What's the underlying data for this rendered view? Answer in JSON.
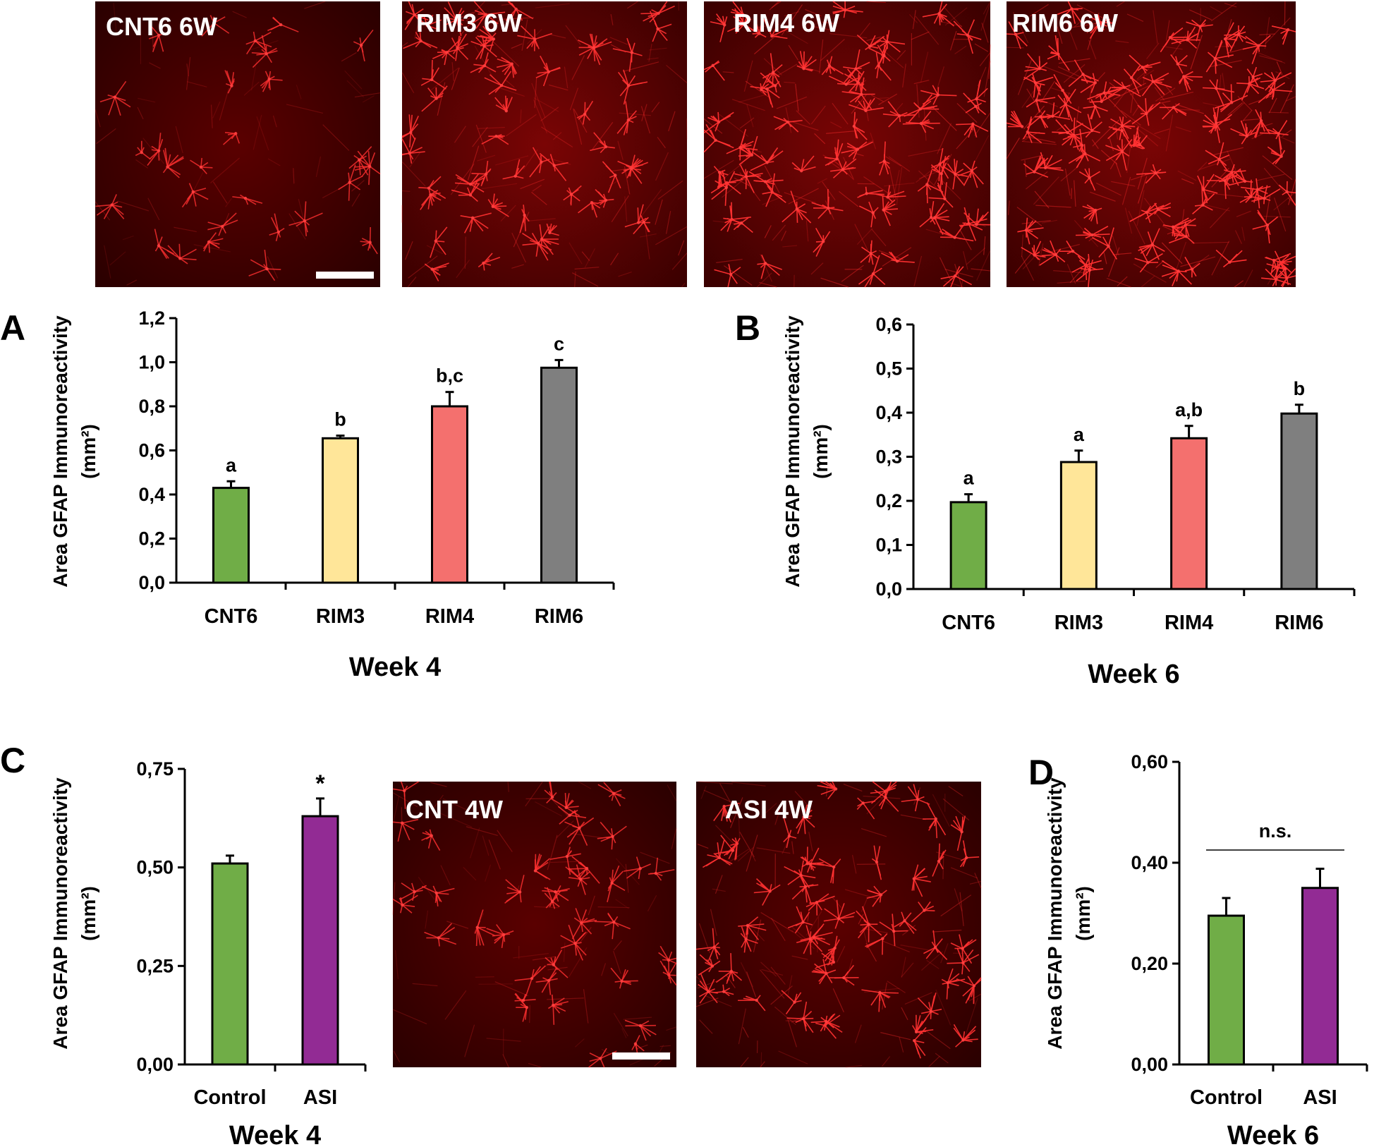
{
  "colors": {
    "CNT6": "#70ad47",
    "RIM3": "#ffe699",
    "RIM4": "#f4706e",
    "RIM6": "#7f7f7f",
    "Control": "#70ad47",
    "ASI": "#922b94"
  },
  "micrographs": {
    "top": [
      "CNT6 6W",
      "RIM3 6W",
      "RIM4 6W",
      "RIM6 6W"
    ],
    "panel_c": [
      "CNT 4W",
      "ASI 4W"
    ]
  },
  "chart_data": [
    {
      "panel": "A",
      "type": "bar",
      "categories": [
        "CNT6",
        "RIM3",
        "RIM4",
        "RIM6"
      ],
      "values": [
        0.43,
        0.655,
        0.8,
        0.975
      ],
      "errors": [
        0.03,
        0.012,
        0.065,
        0.035
      ],
      "significance": [
        "a",
        "b",
        "b,c",
        "c"
      ],
      "ylim": [
        0,
        1.2
      ],
      "yticks": [
        "0,0",
        "0,2",
        "0,4",
        "0,6",
        "0,8",
        "1,0",
        "1,2"
      ],
      "ylabel": "Area GFAP Immunoreactivity",
      "yunit": "(mm²)",
      "xlabel": "Week 4"
    },
    {
      "panel": "B",
      "type": "bar",
      "categories": [
        "CNT6",
        "RIM3",
        "RIM4",
        "RIM6"
      ],
      "values": [
        0.197,
        0.288,
        0.342,
        0.398
      ],
      "errors": [
        0.018,
        0.026,
        0.028,
        0.02
      ],
      "significance": [
        "a",
        "a",
        "a,b",
        "b"
      ],
      "ylim": [
        0,
        0.6
      ],
      "yticks": [
        "0,0",
        "0,1",
        "0,2",
        "0,3",
        "0,4",
        "0,5",
        "0,6"
      ],
      "ylabel": "Area GFAP Immunoreactivity",
      "yunit": "(mm²)",
      "xlabel": "Week 6"
    },
    {
      "panel": "C",
      "type": "bar",
      "categories": [
        "Control",
        "ASI"
      ],
      "values": [
        0.51,
        0.63
      ],
      "errors": [
        0.02,
        0.045
      ],
      "significance": [
        "",
        "*"
      ],
      "ylim": [
        0,
        0.75
      ],
      "yticks": [
        "0,00",
        "0,25",
        "0,50",
        "0,75"
      ],
      "ylabel": "Area GFAP Immunoreactivity",
      "yunit": "(mm²)",
      "xlabel": "Week 4"
    },
    {
      "panel": "D",
      "type": "bar",
      "categories": [
        "Control",
        "ASI"
      ],
      "values": [
        0.295,
        0.35
      ],
      "errors": [
        0.035,
        0.038
      ],
      "significance": [
        "",
        ""
      ],
      "annotation": "n.s.",
      "ylim": [
        0,
        0.6
      ],
      "yticks": [
        "0,00",
        "0,20",
        "0,40",
        "0,60"
      ],
      "ylabel": "Area GFAP Immunoreactivity",
      "yunit": "(mm²)",
      "xlabel": "Week 6"
    }
  ]
}
